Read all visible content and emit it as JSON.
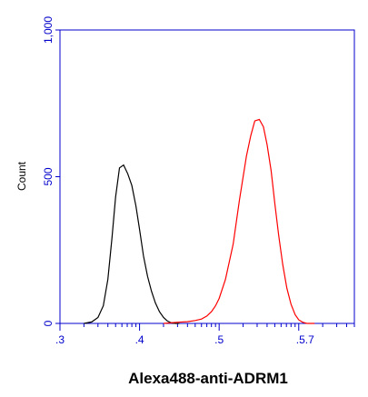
{
  "chart_data": {
    "type": "line",
    "title": "",
    "xlabel": "Alexa488-anti-ADRM1",
    "ylabel": "Count",
    "x_scale": "log",
    "xlim": [
      1000,
      5000000
    ],
    "ylim": [
      0,
      1000
    ],
    "x_tick_labels": [
      ".3",
      ".4",
      ".5",
      ".5.7"
    ],
    "y_tick_labels": [
      "0",
      "500",
      "1,000"
    ],
    "colors": {
      "axis": "#0000cc",
      "control": "#000000",
      "stained": "#ff0000"
    },
    "series": [
      {
        "color": "#000000",
        "x": [
          2000,
          2500,
          3000,
          3500,
          4000,
          4500,
          5000,
          5600,
          6300,
          7100,
          8000,
          9000,
          10000,
          11200,
          12600,
          14100,
          15800,
          17800,
          20000,
          22400,
          25100,
          28200,
          31600
        ],
        "y": [
          0,
          5,
          20,
          60,
          150,
          290,
          430,
          530,
          540,
          510,
          470,
          400,
          320,
          230,
          160,
          110,
          70,
          40,
          20,
          8,
          2,
          0,
          0
        ]
      },
      {
        "color": "#ff0000",
        "x": [
          20000,
          30000,
          40000,
          50000,
          60000,
          70000,
          80000,
          90000,
          100000,
          120000,
          150000,
          180000,
          220000,
          250000,
          280000,
          320000,
          360000,
          400000,
          450000,
          500000,
          560000,
          630000,
          710000,
          800000,
          900000,
          1000000,
          1120000,
          1260000,
          1410000,
          1580000
        ],
        "y": [
          0,
          4,
          6,
          10,
          15,
          25,
          40,
          60,
          85,
          150,
          270,
          420,
          570,
          640,
          690,
          695,
          670,
          610,
          520,
          410,
          300,
          200,
          120,
          65,
          30,
          12,
          4,
          0,
          0,
          0
        ]
      }
    ]
  }
}
